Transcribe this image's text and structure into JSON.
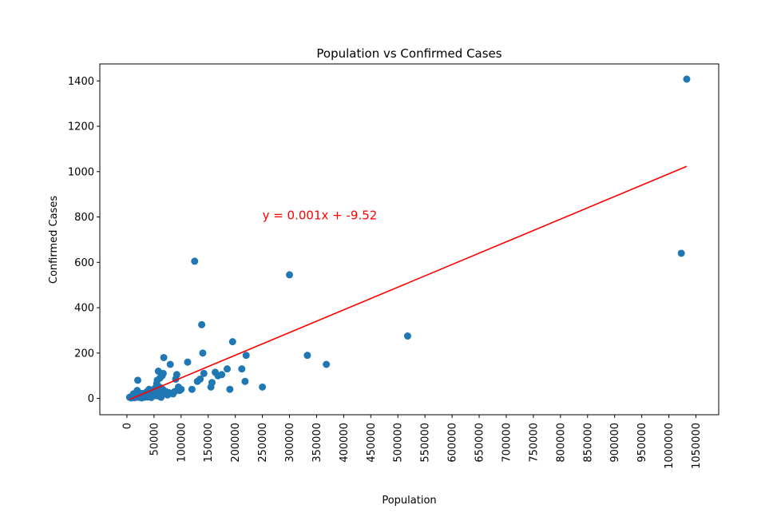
{
  "chart_data": {
    "type": "scatter",
    "title": "Population vs Confirmed Cases",
    "xlabel": "Population",
    "ylabel": "Confirmed Cases",
    "xlim": [
      -50000,
      1092000
    ],
    "ylim": [
      -72,
      1475
    ],
    "xticks": [
      0,
      50000,
      100000,
      150000,
      200000,
      250000,
      300000,
      350000,
      400000,
      450000,
      500000,
      550000,
      600000,
      650000,
      700000,
      750000,
      800000,
      850000,
      900000,
      950000,
      1000000,
      1050000
    ],
    "yticks": [
      0,
      200,
      400,
      600,
      800,
      1000,
      1200,
      1400
    ],
    "grid": false,
    "colors": {
      "points": "#1f77b4",
      "regression": "#ff0000",
      "annotation": "#ff0000"
    },
    "regression": {
      "slope": 0.001,
      "intercept": -9.52,
      "x_range": [
        5000,
        1033000
      ]
    },
    "annotation": {
      "text": "y = 0.001x + -9.52",
      "x": 250000,
      "y": 790
    },
    "series": [
      {
        "points": [
          [
            5000,
            5
          ],
          [
            8000,
            2
          ],
          [
            10000,
            10
          ],
          [
            12000,
            20
          ],
          [
            14000,
            3
          ],
          [
            15000,
            15
          ],
          [
            16000,
            8
          ],
          [
            18000,
            25
          ],
          [
            19000,
            35
          ],
          [
            20000,
            80
          ],
          [
            21000,
            5
          ],
          [
            22000,
            12
          ],
          [
            24000,
            18
          ],
          [
            26000,
            10
          ],
          [
            27000,
            2
          ],
          [
            28000,
            22
          ],
          [
            30000,
            8
          ],
          [
            31000,
            15
          ],
          [
            32000,
            5
          ],
          [
            34000,
            20
          ],
          [
            35000,
            12
          ],
          [
            37000,
            30
          ],
          [
            38000,
            6
          ],
          [
            40000,
            18
          ],
          [
            41000,
            40
          ],
          [
            43000,
            10
          ],
          [
            44000,
            25
          ],
          [
            45000,
            4
          ],
          [
            47000,
            35
          ],
          [
            48000,
            15
          ],
          [
            50000,
            20
          ],
          [
            52000,
            45
          ],
          [
            53000,
            12
          ],
          [
            55000,
            65
          ],
          [
            56000,
            80
          ],
          [
            57000,
            30
          ],
          [
            58000,
            120
          ],
          [
            59000,
            10
          ],
          [
            60000,
            50
          ],
          [
            61000,
            90
          ],
          [
            62000,
            25
          ],
          [
            63000,
            5
          ],
          [
            65000,
            100
          ],
          [
            66000,
            40
          ],
          [
            67000,
            110
          ],
          [
            68000,
            180
          ],
          [
            70000,
            20
          ],
          [
            72000,
            30
          ],
          [
            75000,
            15
          ],
          [
            78000,
            25
          ],
          [
            80000,
            150
          ],
          [
            85000,
            20
          ],
          [
            88000,
            30
          ],
          [
            90000,
            85
          ],
          [
            92000,
            105
          ],
          [
            95000,
            50
          ],
          [
            97000,
            35
          ],
          [
            100000,
            40
          ],
          [
            112000,
            160
          ],
          [
            120000,
            40
          ],
          [
            125000,
            605
          ],
          [
            130000,
            75
          ],
          [
            135000,
            85
          ],
          [
            138000,
            325
          ],
          [
            140000,
            200
          ],
          [
            142000,
            110
          ],
          [
            155000,
            50
          ],
          [
            157000,
            70
          ],
          [
            163000,
            115
          ],
          [
            168000,
            100
          ],
          [
            175000,
            105
          ],
          [
            185000,
            130
          ],
          [
            190000,
            40
          ],
          [
            195000,
            250
          ],
          [
            212000,
            130
          ],
          [
            218000,
            75
          ],
          [
            220000,
            190
          ],
          [
            250000,
            50
          ],
          [
            300000,
            545
          ],
          [
            333000,
            190
          ],
          [
            368000,
            150
          ],
          [
            518000,
            275
          ],
          [
            1023000,
            640
          ],
          [
            1033000,
            1408
          ]
        ]
      }
    ]
  }
}
